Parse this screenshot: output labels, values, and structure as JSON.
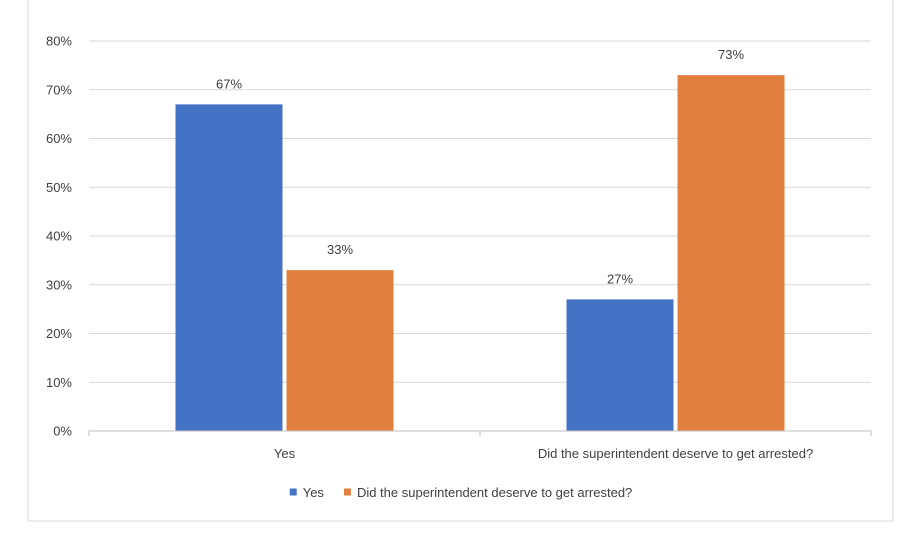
{
  "chart_data": {
    "type": "bar",
    "categories": [
      "Yes",
      "Did the superintendent deserve to get arrested?"
    ],
    "series": [
      {
        "name": "Yes",
        "values": [
          0.67,
          0.27
        ],
        "color": "#4472C4"
      },
      {
        "name": "Did the superintendent deserve to get arrested?",
        "values": [
          0.33,
          0.73
        ],
        "color": "#E07F3E"
      }
    ],
    "data_labels": [
      [
        "67%",
        "27%"
      ],
      [
        "33%",
        "73%"
      ]
    ],
    "ylim": [
      0,
      0.8
    ],
    "y_ticks": [
      0,
      0.1,
      0.2,
      0.3,
      0.4,
      0.5,
      0.6,
      0.7,
      0.8
    ],
    "y_tick_labels": [
      "0%",
      "10%",
      "20%",
      "30%",
      "40%",
      "50%",
      "60%",
      "70%",
      "80%"
    ],
    "grid": true,
    "legend": "bottom",
    "title": "",
    "xlabel": "",
    "ylabel": ""
  }
}
